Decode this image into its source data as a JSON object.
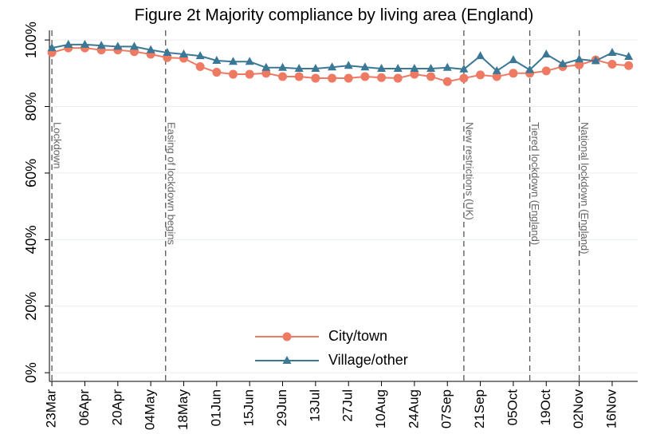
{
  "chart_data": {
    "type": "line",
    "title": "Figure 2t Majority compliance by living area (England)",
    "categories": [
      "23Mar",
      null,
      "06Apr",
      null,
      "20Apr",
      null,
      "04May",
      null,
      "18May",
      null,
      "01Jun",
      null,
      "15Jun",
      null,
      "29Jun",
      null,
      "13Jul",
      null,
      "27Jul",
      null,
      "10Aug",
      null,
      "24Aug",
      null,
      "07Sep",
      null,
      "21Sep",
      null,
      "05Oct",
      null,
      "19Oct",
      null,
      "02Nov",
      null,
      "16Nov",
      null
    ],
    "series": [
      {
        "name": "City/town",
        "color": "#ef7a63",
        "marker": "circle",
        "values": [
          96.2,
          97.6,
          97.6,
          97,
          97,
          96.5,
          95.7,
          94.7,
          94.5,
          92,
          90.3,
          89.7,
          89.7,
          90,
          89,
          89,
          88.5,
          88.5,
          88.5,
          89,
          88.7,
          88.5,
          89.7,
          89,
          87.5,
          88.5,
          89.5,
          89,
          90,
          90,
          90.7,
          92,
          92.5,
          94,
          92.7,
          92.3
        ]
      },
      {
        "name": "Village/other",
        "color": "#3b7896",
        "marker": "triangle",
        "values": [
          97.6,
          98.6,
          98.6,
          98.3,
          98,
          98,
          97,
          96.2,
          95.7,
          95.2,
          93.8,
          93.5,
          93.5,
          91.7,
          91.7,
          91.4,
          91.4,
          91.8,
          92.3,
          91.8,
          91.4,
          91.4,
          91.4,
          91.4,
          91.7,
          91.2,
          95.2,
          90.7,
          94,
          91,
          95.7,
          92.8,
          94.2,
          93.7,
          96.2,
          95
        ]
      }
    ],
    "annotations": [
      {
        "label": "Lockdown",
        "at": 0
      },
      {
        "label": "Easing of lockdown begins",
        "at": 6.9
      },
      {
        "label": "New restrictions (UK)",
        "at": 25
      },
      {
        "label": "Tiered lockdown (England)",
        "at": 29
      },
      {
        "label": "National lockdown (England)",
        "at": 32
      }
    ],
    "ylim": [
      -2.6,
      102.9
    ],
    "yticks": [
      {
        "value": 0,
        "label": "0%"
      },
      {
        "value": 20,
        "label": "20%"
      },
      {
        "value": 40,
        "label": "40%"
      },
      {
        "value": 60,
        "label": "60%"
      },
      {
        "value": 80,
        "label": "80%"
      },
      {
        "value": 100,
        "label": "100%"
      }
    ],
    "grid": true,
    "legend": "bottom"
  }
}
